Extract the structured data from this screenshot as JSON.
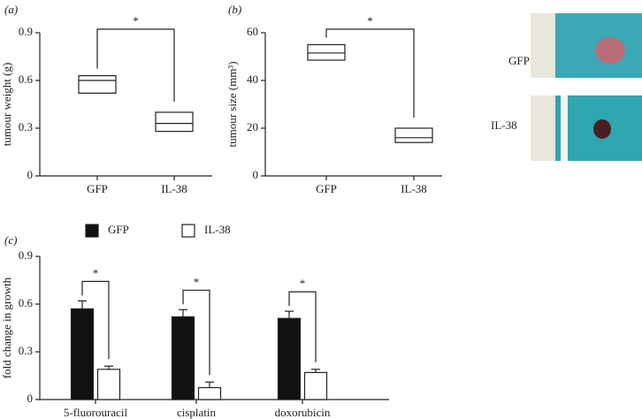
{
  "chart_data": [
    {
      "type": "box",
      "panel": "(a)",
      "y_label": "tumour weight (g)",
      "annotation": "*",
      "categories": [
        "GFP",
        "IL-38"
      ],
      "low": [
        0.52,
        0.28
      ],
      "median": [
        0.6,
        0.33
      ],
      "high": [
        0.63,
        0.4
      ],
      "color": "#ffffff",
      "ylim": [
        0,
        0.9
      ],
      "yticks": [
        0,
        0.3,
        0.6,
        0.9
      ]
    },
    {
      "type": "box",
      "panel": "(b)",
      "y_label": "tumour size (mm³)",
      "annotation": "*",
      "categories": [
        "GFP",
        "IL-38"
      ],
      "low": [
        48.5,
        14
      ],
      "median": [
        51.5,
        16
      ],
      "high": [
        55,
        20
      ],
      "color": "#ffffff",
      "ylim": [
        0,
        60
      ],
      "yticks": [
        0,
        20,
        40,
        60
      ]
    },
    {
      "type": "bar",
      "panel": "(c)",
      "y_label": "fold change in growth",
      "annotations": [
        "*",
        "*",
        "*"
      ],
      "categories": [
        "5-fluorouracil",
        "cisplatin",
        "doxorubicin"
      ],
      "series": [
        {
          "name": "GFP",
          "color": "#111111",
          "values": [
            0.57,
            0.52,
            0.51
          ],
          "errors": [
            0.05,
            0.045,
            0.045
          ]
        },
        {
          "name": "IL-38",
          "color": "#ffffff",
          "values": [
            0.19,
            0.075,
            0.17
          ],
          "errors": [
            0.02,
            0.035,
            0.02
          ]
        }
      ],
      "ylim": [
        0,
        0.9
      ],
      "yticks": [
        0,
        0.3,
        0.6,
        0.9
      ]
    }
  ],
  "photos": [
    {
      "label": "GFP"
    },
    {
      "label": "IL-38"
    }
  ]
}
